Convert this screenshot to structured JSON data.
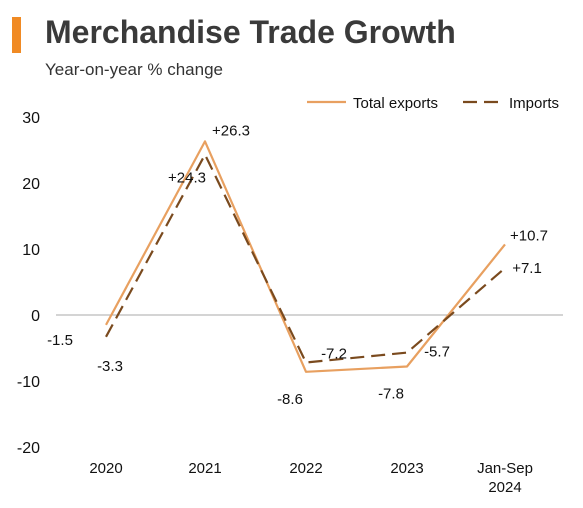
{
  "header": {
    "title": "Merchandise Trade Growth",
    "subtitle": "Year-on-year % change",
    "accent_color": "#F08A24"
  },
  "chart_data": {
    "type": "line",
    "title": "Merchandise Trade Growth",
    "subtitle": "Year-on-year % change",
    "categories": [
      "2020",
      "2021",
      "2022",
      "2023",
      "Jan-Sep 2024"
    ],
    "series": [
      {
        "name": "Total exports",
        "values": [
          -1.5,
          26.3,
          -8.6,
          -7.8,
          10.7
        ],
        "labels": [
          "-1.5",
          "+26.3",
          "-8.6",
          "-7.8",
          "+10.7"
        ],
        "color": "#E8A060",
        "style": "solid"
      },
      {
        "name": "Imports",
        "values": [
          -3.3,
          24.3,
          -7.2,
          -5.7,
          7.1
        ],
        "labels": [
          "-3.3",
          "+24.3",
          "-7.2",
          "-5.7",
          "+7.1"
        ],
        "color": "#7A4A1E",
        "style": "dashed"
      }
    ],
    "yticks": [
      "30",
      "20",
      "10",
      "0",
      "-10",
      "-20"
    ],
    "ylim": [
      -20,
      30
    ],
    "xlabel": "",
    "ylabel": "",
    "grid": false,
    "legend_position": "top-right"
  }
}
